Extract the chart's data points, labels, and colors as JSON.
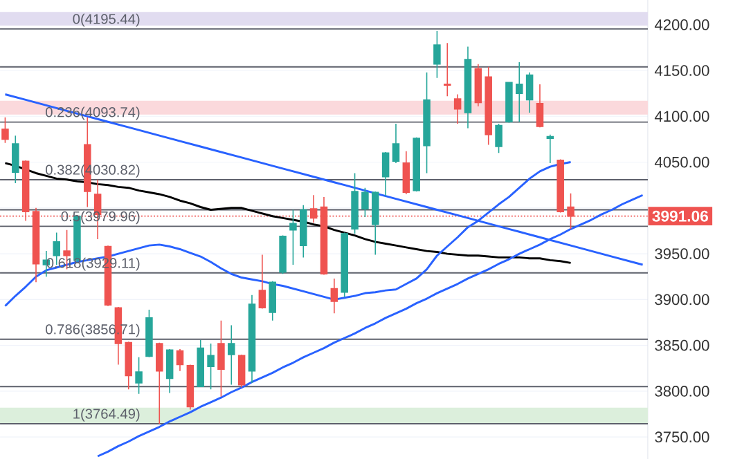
{
  "chart_data": {
    "type": "candlestick",
    "categories": [
      null,
      null,
      null,
      null,
      null,
      null,
      null,
      null,
      null,
      null,
      null,
      null,
      null,
      null,
      null,
      null,
      null,
      null,
      null,
      null,
      null,
      null,
      null,
      null,
      null,
      null,
      null,
      null,
      null,
      null,
      null,
      null,
      null,
      null,
      null,
      null,
      null,
      null,
      null,
      null,
      null,
      null,
      null,
      null,
      null,
      null,
      null,
      null,
      null,
      null,
      null,
      null,
      null,
      null,
      null,
      null,
      null,
      null,
      null,
      null,
      null,
      null,
      null
    ],
    "ohlc": [
      [
        4086,
        4099,
        4071,
        4075
      ],
      [
        4039,
        4079,
        4027,
        4070
      ],
      [
        4051,
        4052,
        3986,
        3996
      ],
      [
        3996,
        4000,
        3919,
        3939
      ],
      [
        3938,
        3953,
        3925,
        3943
      ],
      [
        3948,
        3973,
        3938,
        3963
      ],
      [
        3953,
        3976,
        3933,
        3948
      ],
      [
        3943,
        3992,
        3940,
        3991
      ],
      [
        4069,
        4099,
        4001,
        4018
      ],
      [
        4015,
        4031,
        3966,
        3993
      ],
      [
        3958,
        3959,
        3893,
        3894
      ],
      [
        3891,
        3892,
        3829,
        3852
      ],
      [
        3853,
        3854,
        3802,
        3817
      ],
      [
        3809,
        3837,
        3797,
        3821
      ],
      [
        3838,
        3889,
        3837,
        3880
      ],
      [
        3852,
        3853,
        3764.49,
        3822
      ],
      [
        3814,
        3846,
        3798,
        3845
      ],
      [
        3844,
        3846,
        3822,
        3829
      ],
      [
        3828,
        3829,
        3780,
        3783
      ],
      [
        3805,
        3856,
        3805,
        3847
      ],
      [
        3827,
        3852,
        3802,
        3839
      ],
      [
        3852,
        3877,
        3794,
        3824
      ],
      [
        3840,
        3872,
        3807,
        3852
      ],
      [
        3839,
        3840,
        3804,
        3807
      ],
      [
        3822,
        3905,
        3809,
        3895
      ],
      [
        3910,
        3949,
        3890,
        3891
      ],
      [
        3886,
        3920,
        3877,
        3919
      ],
      [
        3930,
        3970,
        3928,
        3969
      ],
      [
        3976,
        3998,
        3938,
        3983
      ],
      [
        3959,
        4003,
        3946,
        3998
      ],
      [
        3999,
        4014,
        3984,
        3989
      ],
      [
        4001,
        4012,
        3927,
        3928
      ],
      [
        3912,
        3923,
        3885,
        3898
      ],
      [
        3908,
        3973,
        3903,
        3972
      ],
      [
        3977,
        4038,
        3972,
        4018
      ],
      [
        3999,
        4022,
        3990,
        4017
      ],
      [
        3982,
        4018,
        3949,
        4017
      ],
      [
        4034,
        4061,
        4013,
        4060
      ],
      [
        4051,
        4092,
        4049,
        4070
      ],
      [
        4049,
        4062,
        4015,
        4017
      ],
      [
        4019,
        4077,
        4018,
        4076
      ],
      [
        4068,
        4148,
        4038,
        4118
      ],
      [
        4157,
        4193,
        4142,
        4178
      ],
      [
        4135,
        4180,
        4122,
        4134
      ],
      [
        4119,
        4124,
        4092,
        4108
      ],
      [
        4104,
        4176,
        4087,
        4162
      ],
      [
        4152,
        4157,
        4111,
        4115
      ],
      [
        4143,
        4154,
        4069,
        4080
      ],
      [
        4067,
        4092,
        4060,
        4090
      ],
      [
        4094,
        4137,
        4093,
        4137
      ],
      [
        4125,
        4159,
        4094,
        4135
      ],
      [
        4118,
        4148,
        4104,
        4145
      ],
      [
        4114,
        4135,
        4088,
        4089
      ],
      [
        4076,
        4080,
        4049,
        4078
      ],
      [
        4052,
        4053,
        3995,
        3996
      ],
      [
        4001,
        4016,
        3977,
        3991.06
      ],
      null,
      null,
      null,
      null,
      null,
      null,
      null
    ],
    "colors": [
      "#ef5350",
      "#26a69a",
      "#ef5350",
      "#ef5350",
      "#26a69a",
      "#26a69a",
      "#ef5350",
      "#26a69a",
      "#ef5350",
      "#ef5350",
      "#ef5350",
      "#ef5350",
      "#ef5350",
      "#26a69a",
      "#26a69a",
      "#ef5350",
      "#26a69a",
      "#ef5350",
      "#ef5350",
      "#26a69a",
      "#26a69a",
      "#ef5350",
      "#26a69a",
      "#ef5350",
      "#26a69a",
      "#ef5350",
      "#26a69a",
      "#26a69a",
      "#26a69a",
      "#26a69a",
      "#ef5350",
      "#ef5350",
      "#ef5350",
      "#26a69a",
      "#26a69a",
      "#26a69a",
      "#26a69a",
      "#26a69a",
      "#26a69a",
      "#ef5350",
      "#26a69a",
      "#26a69a",
      "#26a69a",
      "#ef5350",
      "#ef5350",
      "#26a69a",
      "#ef5350",
      "#ef5350",
      "#26a69a",
      "#26a69a",
      "#26a69a",
      "#26a69a",
      "#ef5350",
      "#26a69a",
      "#ef5350",
      "#ef5350",
      null,
      null,
      null,
      null,
      null,
      null,
      null
    ],
    "series": [
      {
        "type": "line",
        "color": "#000000",
        "values": [
          4049,
          4046,
          4042,
          4038,
          4035,
          4032,
          4031,
          4029,
          4028,
          4026,
          4025,
          4023,
          4022,
          4019,
          4017,
          4015,
          4012,
          4008,
          4005,
          4001,
          3998,
          3999,
          4000,
          4000,
          3997,
          3994,
          3991,
          3989,
          3987,
          3985,
          3982,
          3980,
          3976,
          3973,
          3970,
          3966,
          3963,
          3961,
          3959,
          3957,
          3955,
          3953,
          3952,
          3950,
          3949,
          3948,
          3948,
          3947,
          3946,
          3946,
          3946,
          3945,
          3945,
          3943,
          3942,
          3940,
          null,
          null,
          null,
          null,
          null,
          null,
          null
        ]
      },
      {
        "type": "line",
        "color": "#2962ff",
        "values": [
          3893,
          3904,
          3914,
          3925,
          3932,
          3935,
          3938,
          3941,
          3943,
          3945,
          3947,
          3950,
          3953,
          3956,
          3959,
          3960,
          3958,
          3955,
          3951,
          3947,
          3941,
          3934,
          3928,
          3924,
          3922,
          3920,
          3917,
          3915,
          3912,
          3909,
          3906,
          3903,
          3900,
          3902,
          3904,
          3907,
          3908,
          3910,
          3911,
          3917,
          3923,
          3933,
          3948,
          3958,
          3968,
          3979,
          3986,
          3995,
          4004,
          4012,
          4022,
          4032,
          4040,
          4045,
          4048,
          4050,
          null,
          null,
          null,
          null,
          null,
          null,
          null
        ]
      },
      {
        "type": "line",
        "color": "#2962ff",
        "values": [
          4124,
          4121,
          4118,
          4115,
          4112,
          4109,
          4106,
          4103,
          4100,
          4097,
          4094,
          4091,
          4088,
          4085,
          4082,
          4079,
          4076,
          4073,
          4070,
          4067,
          4064,
          4061,
          4058,
          4055,
          4052,
          4049,
          4046,
          4043,
          4040,
          4037,
          4034,
          4031,
          4028,
          4025,
          4022,
          4019,
          4016,
          4013,
          4010,
          4007,
          4004,
          4001,
          3998,
          3995,
          3992,
          3989,
          3986,
          3983,
          3980,
          3977,
          3974,
          3971,
          3968,
          3965,
          3962,
          3959,
          3956,
          3953,
          3950,
          3947,
          3944,
          3941,
          3938
        ]
      },
      {
        "type": "line",
        "color": "#2962ff",
        "values": [
          null,
          null,
          null,
          null,
          null,
          null,
          null,
          null,
          null,
          3729,
          3734,
          3740,
          3745,
          3751,
          3756,
          3761,
          3767,
          3772,
          3777,
          3783,
          3788,
          3793,
          3799,
          3804,
          3810,
          3815,
          3820,
          3826,
          3831,
          3837,
          3842,
          3847,
          3853,
          3858,
          3863,
          3869,
          3874,
          3880,
          3885,
          3890,
          3896,
          3901,
          3907,
          3912,
          3917,
          3923,
          3928,
          3933,
          3939,
          3944,
          3950,
          3955,
          3960,
          3966,
          3971,
          3977,
          3982,
          3987,
          3993,
          3998,
          4004,
          4009,
          4014
        ]
      }
    ],
    "ylim": [
      3726,
      4227
    ],
    "yticks": [
      {
        "value": 3750,
        "label": "3750.00"
      },
      {
        "value": 3800,
        "label": "3800.00"
      },
      {
        "value": 3850,
        "label": "3850.00"
      },
      {
        "value": 3900,
        "label": "3900.00"
      },
      {
        "value": 3950,
        "label": "3950.00"
      },
      {
        "value": 4000,
        "label": null
      },
      {
        "value": 4050,
        "label": "4050.00"
      },
      {
        "value": 4100,
        "label": "4100.00"
      },
      {
        "value": 4150,
        "label": "4150.00"
      },
      {
        "value": 4200,
        "label": "4200.00"
      }
    ],
    "tick_labels": "y",
    "grid": "y",
    "bands": [
      {
        "axis": "y",
        "from": 4199,
        "to": 4214,
        "color": "#e1dcf0"
      },
      {
        "axis": "y",
        "from": 4102,
        "to": 4117,
        "color": "#fbd9dc"
      },
      {
        "axis": "y",
        "from": 3765,
        "to": 3782,
        "color": "#dcefdc"
      }
    ],
    "ref_lines": [
      {
        "axis": "y",
        "value": 4195.44,
        "label": "0(4195.44)",
        "color": "#5d606b"
      },
      {
        "axis": "y",
        "value": 4093.74,
        "label": "0.236(4093.74)",
        "color": "#5d606b"
      },
      {
        "axis": "y",
        "value": 4030.82,
        "label": "0.382(4030.82)",
        "color": "#5d606b"
      },
      {
        "axis": "y",
        "value": 3979.96,
        "label": "0.5(3979.96)",
        "color": "#5d606b"
      },
      {
        "axis": "y",
        "value": 3929.11,
        "label": "0.618(3929.11)",
        "color": "#5d606b"
      },
      {
        "axis": "y",
        "value": 3856.71,
        "label": "0.786(3856.71)",
        "color": "#5d606b"
      },
      {
        "axis": "y",
        "value": 3764.49,
        "label": "1(3764.49)",
        "color": "#5d606b"
      },
      {
        "axis": "y",
        "value": 4154,
        "color": "#5d606b"
      },
      {
        "axis": "y",
        "value": 3998,
        "color": "#5d606b"
      },
      {
        "axis": "y",
        "value": 3805,
        "color": "#5d606b"
      },
      {
        "axis": "y",
        "value": 3991.06,
        "color": "#ef5350",
        "line_style": "dotted"
      }
    ],
    "annotations": [
      "3991.06"
    ]
  }
}
